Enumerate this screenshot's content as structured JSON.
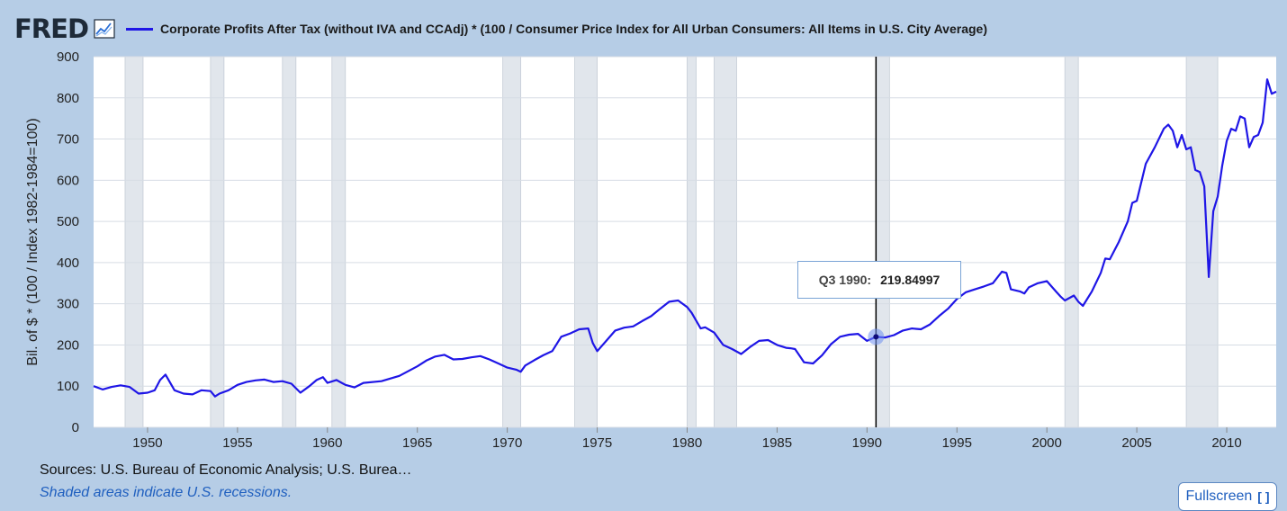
{
  "header": {
    "logo_text": "FRED",
    "title": "Corporate Profits After Tax (without IVA and CCAdj) * (100 / Consumer Price Index for All Urban Consumers: All Items in U.S. City Average)"
  },
  "footer": {
    "sources": "Sources: U.S. Bureau of Economic Analysis; U.S. Burea…",
    "recession_note": "Shaded areas indicate U.S. recessions.",
    "fullscreen_label": "Fullscreen"
  },
  "tooltip": {
    "label": "Q3 1990:",
    "value": "219.84997"
  },
  "colors": {
    "line": "#1f16e6",
    "recession": "#e1e6ec",
    "background": "#b6cde6"
  },
  "chart_data": {
    "type": "line",
    "title": "Corporate Profits After Tax (without IVA and CCAdj) * (100 / Consumer Price Index for All Urban Consumers: All Items in U.S. City Average)",
    "xlabel": "",
    "ylabel": "Bil. of $ * (100 / Index 1982-1984=100)",
    "xlim": [
      1947.0,
      2012.75
    ],
    "ylim": [
      0,
      900
    ],
    "yticks": [
      0,
      100,
      200,
      300,
      400,
      500,
      600,
      700,
      800,
      900
    ],
    "xticks": [
      1950,
      1955,
      1960,
      1965,
      1970,
      1975,
      1980,
      1985,
      1990,
      1995,
      2000,
      2005,
      2010
    ],
    "grid": true,
    "recessions": [
      [
        1948.75,
        1949.75
      ],
      [
        1953.5,
        1954.25
      ],
      [
        1957.5,
        1958.25
      ],
      [
        1960.25,
        1961.0
      ],
      [
        1969.75,
        1970.75
      ],
      [
        1973.75,
        1975.0
      ],
      [
        1980.0,
        1980.5
      ],
      [
        1981.5,
        1982.75
      ],
      [
        1990.5,
        1991.25
      ],
      [
        2001.0,
        2001.75
      ],
      [
        2007.75,
        2009.5
      ]
    ],
    "highlight": {
      "x": 1990.5,
      "y": 219.85
    },
    "series": [
      {
        "name": "Corporate Profits After Tax (without IVA and CCAdj) * (100 / Consumer Price Index for All Urban Consumers: All Items in U.S. City Average)",
        "x": [
          1947.0,
          1947.5,
          1948.0,
          1948.5,
          1949.0,
          1949.5,
          1950.0,
          1950.4,
          1950.7,
          1951.0,
          1951.5,
          1952.0,
          1952.5,
          1953.0,
          1953.5,
          1953.75,
          1954.0,
          1954.5,
          1955.0,
          1955.5,
          1956.0,
          1956.5,
          1957.0,
          1957.5,
          1958.0,
          1958.5,
          1959.0,
          1959.4,
          1959.75,
          1960.0,
          1960.5,
          1961.0,
          1961.5,
          1962.0,
          1963.0,
          1964.0,
          1965.0,
          1965.5,
          1966.0,
          1966.5,
          1967.0,
          1967.5,
          1968.0,
          1968.5,
          1969.0,
          1969.5,
          1970.0,
          1970.5,
          1970.75,
          1971.0,
          1971.5,
          1972.0,
          1972.5,
          1973.0,
          1973.5,
          1974.0,
          1974.5,
          1974.75,
          1975.0,
          1975.5,
          1976.0,
          1976.5,
          1977.0,
          1977.5,
          1978.0,
          1978.5,
          1979.0,
          1979.5,
          1980.0,
          1980.25,
          1980.75,
          1981.0,
          1981.5,
          1982.0,
          1982.5,
          1983.0,
          1983.5,
          1984.0,
          1984.5,
          1985.0,
          1985.5,
          1985.75,
          1986.0,
          1986.5,
          1987.0,
          1987.5,
          1988.0,
          1988.5,
          1989.0,
          1989.5,
          1990.0,
          1990.5,
          1991.0,
          1991.5,
          1992.0,
          1992.5,
          1993.0,
          1993.5,
          1994.0,
          1994.5,
          1995.0,
          1995.5,
          1996.0,
          1996.5,
          1997.0,
          1997.5,
          1997.75,
          1998.0,
          1998.5,
          1998.75,
          1999.0,
          1999.5,
          2000.0,
          2000.5,
          2000.75,
          2001.0,
          2001.5,
          2001.75,
          2002.0,
          2002.5,
          2003.0,
          2003.25,
          2003.5,
          2004.0,
          2004.5,
          2004.75,
          2005.0,
          2005.5,
          2006.0,
          2006.5,
          2006.75,
          2007.0,
          2007.25,
          2007.5,
          2007.75,
          2008.0,
          2008.25,
          2008.5,
          2008.75,
          2009.0,
          2009.25,
          2009.5,
          2009.75,
          2010.0,
          2010.25,
          2010.5,
          2010.75,
          2011.0,
          2011.25,
          2011.5,
          2011.75,
          2012.0,
          2012.25,
          2012.5,
          2012.75
        ],
        "values": [
          100,
          92,
          98,
          102,
          98,
          82,
          84,
          90,
          115,
          128,
          90,
          82,
          80,
          90,
          88,
          75,
          82,
          90,
          103,
          110,
          114,
          116,
          110,
          112,
          106,
          84,
          100,
          115,
          122,
          108,
          115,
          103,
          97,
          108,
          112,
          125,
          148,
          162,
          172,
          176,
          165,
          166,
          170,
          173,
          165,
          155,
          145,
          140,
          135,
          150,
          163,
          175,
          185,
          220,
          228,
          238,
          240,
          205,
          185,
          210,
          235,
          242,
          245,
          258,
          270,
          288,
          305,
          308,
          292,
          278,
          240,
          243,
          230,
          200,
          190,
          178,
          195,
          210,
          212,
          200,
          193,
          192,
          190,
          158,
          155,
          175,
          202,
          220,
          225,
          227,
          210,
          219.85,
          218,
          224,
          235,
          240,
          238,
          250,
          270,
          288,
          312,
          328,
          335,
          342,
          350,
          378,
          375,
          335,
          330,
          325,
          340,
          350,
          355,
          330,
          318,
          308,
          320,
          305,
          295,
          330,
          375,
          410,
          408,
          450,
          500,
          545,
          550,
          640,
          680,
          725,
          735,
          720,
          680,
          710,
          675,
          680,
          625,
          620,
          585,
          365,
          525,
          560,
          635,
          695,
          725,
          720,
          755,
          750,
          680,
          705,
          710,
          740,
          845,
          810,
          815
        ]
      }
    ]
  }
}
